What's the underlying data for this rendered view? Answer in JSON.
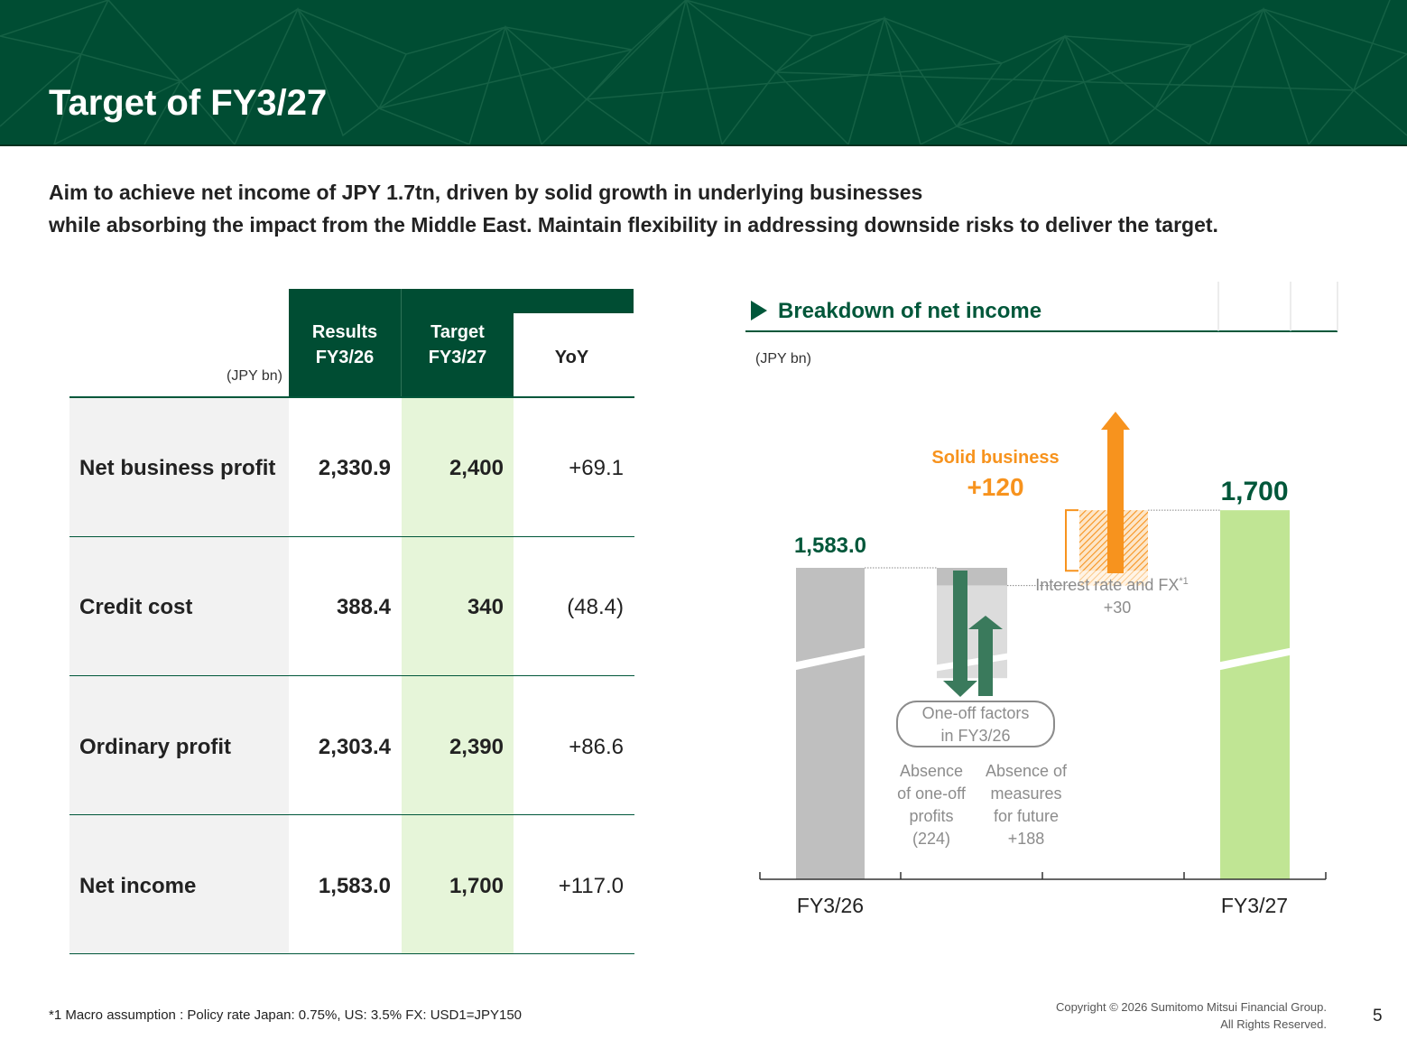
{
  "header": {
    "title": "Target of FY3/27"
  },
  "subtitle": {
    "line1": "Aim to achieve net income of JPY 1.7tn, driven by solid growth in underlying businesses",
    "line2": "while absorbing the impact from the Middle East. Maintain flexibility in addressing downside risks to deliver the target."
  },
  "table": {
    "unit": "(JPY bn)",
    "col_results_l1": "Results",
    "col_results_l2": "FY3/26",
    "col_target_l1": "Target",
    "col_target_l2": "FY3/27",
    "col_yoy": "YoY",
    "rows": [
      {
        "label": "Net business profit",
        "results": "2,330.9",
        "target": "2,400",
        "yoy": "+69.1"
      },
      {
        "label": "Credit cost",
        "results": "388.4",
        "target": "340",
        "yoy": "(48.4)"
      },
      {
        "label": "Ordinary profit",
        "results": "2,303.4",
        "target": "2,390",
        "yoy": "+86.6"
      },
      {
        "label": "Net income",
        "results": "1,583.0",
        "target": "1,700",
        "yoy": "+117.0"
      }
    ]
  },
  "chart_data": {
    "type": "bar",
    "title": "Breakdown of net income",
    "unit": "(JPY bn)",
    "categories": [
      "FY3/26",
      "FY3/27"
    ],
    "values": [
      1583.0,
      1700
    ],
    "value_labels": [
      "1,583.0",
      "1,700"
    ],
    "steps": [
      {
        "label_l1": "Absence",
        "label_l2": "of one-off",
        "label_l3": "profits",
        "label_l4": "(224)",
        "value": -224
      },
      {
        "label_l1": "Absence of",
        "label_l2": "measures",
        "label_l3": "for future",
        "label_l4": "+188",
        "value": 188
      },
      {
        "label_l1": "Interest rate and FX",
        "label_sup": "*1",
        "label_l2": "+30",
        "value": 30
      }
    ],
    "group_label_l1": "One-off factors",
    "group_label_l2": "in FY3/26",
    "solid_label": "Solid business",
    "solid_value": "+120",
    "colors": {
      "fy26_bar": "#bfbfbf",
      "fy27_bar": "#c0e594",
      "arrow_green": "#3a7a5c",
      "solid_orange": "#f7931e",
      "dark_green": "#00573a"
    }
  },
  "footnote": "*1 Macro assumption : Policy rate Japan: 0.75%, US: 3.5%  FX: USD1=JPY150",
  "copyright_l1": "Copyright © 2026 Sumitomo Mitsui Financial Group.",
  "copyright_l2": "All Rights Reserved.",
  "page_number": "5"
}
